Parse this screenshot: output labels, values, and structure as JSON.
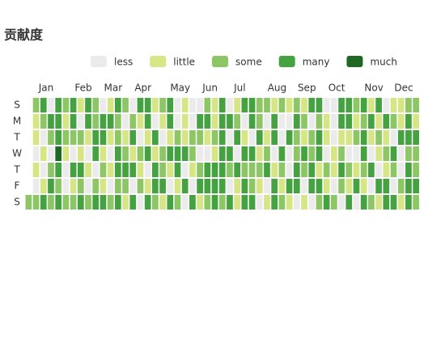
{
  "chart_data": {
    "type": "calendar-heatmap",
    "title": "贡献度",
    "days": [
      "S",
      "M",
      "T",
      "W",
      "T",
      "F",
      "S"
    ],
    "months": [
      "Jan",
      "Feb",
      "Mar",
      "Apr",
      "May",
      "Jun",
      "Jul",
      "Aug",
      "Sep",
      "Oct",
      "Nov",
      "Dec"
    ],
    "pieces": [
      {
        "label": "less",
        "color": "#ebebeb"
      },
      {
        "label": "little",
        "color": "#d6e685"
      },
      {
        "label": "some",
        "color": "#8cc665"
      },
      {
        "label": "many",
        "color": "#44a340"
      },
      {
        "label": "much",
        "color": "#1e6823"
      }
    ],
    "weeks": [
      [
        null,
        null,
        null,
        null,
        null,
        null,
        2
      ],
      [
        2,
        1,
        1,
        0,
        1,
        0,
        2
      ],
      [
        3,
        2,
        0,
        1,
        0,
        1,
        3
      ],
      [
        0,
        3,
        2,
        0,
        2,
        3,
        2
      ],
      [
        3,
        3,
        3,
        4,
        3,
        2,
        3
      ],
      [
        2,
        1,
        2,
        1,
        0,
        0,
        2
      ],
      [
        3,
        3,
        2,
        0,
        3,
        1,
        2
      ],
      [
        1,
        0,
        2,
        1,
        3,
        2,
        3
      ],
      [
        3,
        3,
        1,
        0,
        1,
        0,
        2
      ],
      [
        2,
        2,
        3,
        3,
        0,
        2,
        3
      ],
      [
        0,
        3,
        3,
        1,
        2,
        1,
        3
      ],
      [
        1,
        3,
        1,
        0,
        1,
        0,
        2
      ],
      [
        3,
        2,
        2,
        3,
        3,
        2,
        3
      ],
      [
        2,
        0,
        1,
        2,
        3,
        2,
        1
      ],
      [
        0,
        2,
        3,
        1,
        3,
        0,
        3
      ],
      [
        3,
        1,
        0,
        2,
        1,
        2,
        0
      ],
      [
        3,
        3,
        1,
        3,
        0,
        1,
        3
      ],
      [
        1,
        0,
        3,
        1,
        3,
        3,
        2
      ],
      [
        2,
        1,
        0,
        2,
        2,
        3,
        1
      ],
      [
        3,
        3,
        1,
        3,
        1,
        0,
        3
      ],
      [
        0,
        0,
        2,
        3,
        3,
        1,
        2
      ],
      [
        1,
        1,
        1,
        3,
        0,
        3,
        0
      ],
      [
        0,
        0,
        2,
        2,
        1,
        0,
        3
      ],
      [
        0,
        3,
        2,
        0,
        2,
        3,
        1
      ],
      [
        2,
        3,
        1,
        0,
        3,
        3,
        2
      ],
      [
        1,
        1,
        2,
        1,
        3,
        3,
        3
      ],
      [
        3,
        3,
        3,
        3,
        3,
        3,
        2
      ],
      [
        0,
        3,
        0,
        3,
        2,
        0,
        3
      ],
      [
        1,
        2,
        3,
        0,
        3,
        1,
        1
      ],
      [
        3,
        0,
        1,
        3,
        2,
        3,
        3
      ],
      [
        3,
        3,
        0,
        3,
        2,
        2,
        3
      ],
      [
        2,
        2,
        3,
        1,
        2,
        1,
        0
      ],
      [
        2,
        0,
        1,
        2,
        3,
        0,
        1
      ],
      [
        1,
        3,
        3,
        0,
        1,
        3,
        3
      ],
      [
        2,
        0,
        0,
        3,
        2,
        1,
        2
      ],
      [
        1,
        0,
        3,
        0,
        0,
        3,
        1
      ],
      [
        2,
        3,
        2,
        2,
        3,
        3,
        0
      ],
      [
        1,
        2,
        1,
        3,
        2,
        0,
        1
      ],
      [
        3,
        0,
        2,
        2,
        3,
        3,
        0
      ],
      [
        3,
        2,
        3,
        3,
        1,
        3,
        2
      ],
      [
        0,
        1,
        1,
        0,
        2,
        1,
        3
      ],
      [
        0,
        0,
        0,
        1,
        1,
        0,
        2
      ],
      [
        3,
        3,
        1,
        2,
        3,
        2,
        0
      ],
      [
        3,
        3,
        1,
        0,
        2,
        1,
        3
      ],
      [
        2,
        1,
        2,
        0,
        1,
        3,
        0
      ],
      [
        3,
        2,
        3,
        3,
        2,
        1,
        3
      ],
      [
        1,
        3,
        1,
        0,
        3,
        0,
        2
      ],
      [
        3,
        1,
        2,
        1,
        0,
        3,
        1
      ],
      [
        0,
        3,
        1,
        2,
        1,
        3,
        3
      ],
      [
        1,
        2,
        0,
        3,
        2,
        0,
        3
      ],
      [
        1,
        1,
        3,
        0,
        0,
        2,
        1
      ],
      [
        2,
        3,
        3,
        2,
        3,
        3,
        3
      ],
      [
        2,
        1,
        3,
        2,
        2,
        3,
        2
      ]
    ]
  }
}
